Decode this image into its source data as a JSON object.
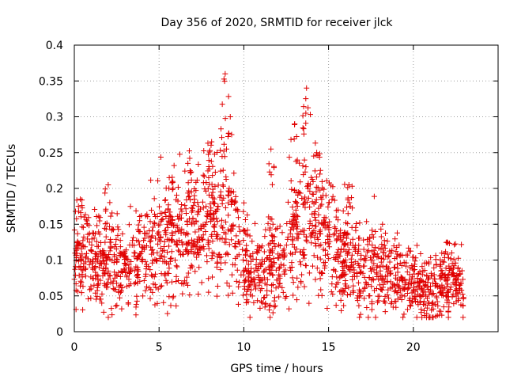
{
  "chart_data": {
    "type": "scatter",
    "title": "Day 356 of 2020, SRMTID for receiver jlck",
    "xlabel": "GPS time / hours",
    "ylabel": "SRMTID / TECUs",
    "xlim": [
      0,
      25
    ],
    "ylim": [
      0,
      0.4
    ],
    "xticks": [
      0,
      5,
      10,
      15,
      20
    ],
    "xtick_labels": [
      "0",
      "5",
      "10",
      "15",
      "20"
    ],
    "yticks": [
      0,
      0.05,
      0.1,
      0.15,
      0.2,
      0.25,
      0.3,
      0.35,
      0.4
    ],
    "ytick_labels": [
      "0",
      "0.05",
      "0.1",
      "0.15",
      "0.2",
      "0.25",
      "0.3",
      "0.35",
      "0.4"
    ],
    "grid": true,
    "marker": "+",
    "color": "#e00000",
    "x_range_of_data": [
      0,
      23
    ],
    "envelope": {
      "hours": [
        0,
        1,
        2,
        3,
        4,
        5,
        6,
        7,
        8,
        8.8,
        9.5,
        10,
        10.5,
        11,
        11.5,
        12,
        12.5,
        13,
        13.5,
        14,
        14.5,
        15,
        16,
        17,
        18,
        19,
        20,
        20.5,
        21,
        22,
        23
      ],
      "typical": [
        0.1,
        0.1,
        0.095,
        0.085,
        0.105,
        0.115,
        0.12,
        0.14,
        0.145,
        0.17,
        0.12,
        0.1,
        0.08,
        0.075,
        0.08,
        0.09,
        0.1,
        0.14,
        0.15,
        0.16,
        0.14,
        0.12,
        0.1,
        0.09,
        0.085,
        0.075,
        0.07,
        0.05,
        0.055,
        0.065,
        0.06
      ],
      "peaks": [
        {
          "x": 0.35,
          "y": 0.185
        },
        {
          "x": 2.0,
          "y": 0.205
        },
        {
          "x": 5.6,
          "y": 0.215
        },
        {
          "x": 6.7,
          "y": 0.235
        },
        {
          "x": 8.1,
          "y": 0.265
        },
        {
          "x": 8.9,
          "y": 0.36
        },
        {
          "x": 9.2,
          "y": 0.3
        },
        {
          "x": 11.6,
          "y": 0.255
        },
        {
          "x": 13.0,
          "y": 0.29
        },
        {
          "x": 13.7,
          "y": 0.34
        },
        {
          "x": 14.3,
          "y": 0.25
        },
        {
          "x": 16.2,
          "y": 0.205
        },
        {
          "x": 22.0,
          "y": 0.125
        }
      ]
    }
  }
}
